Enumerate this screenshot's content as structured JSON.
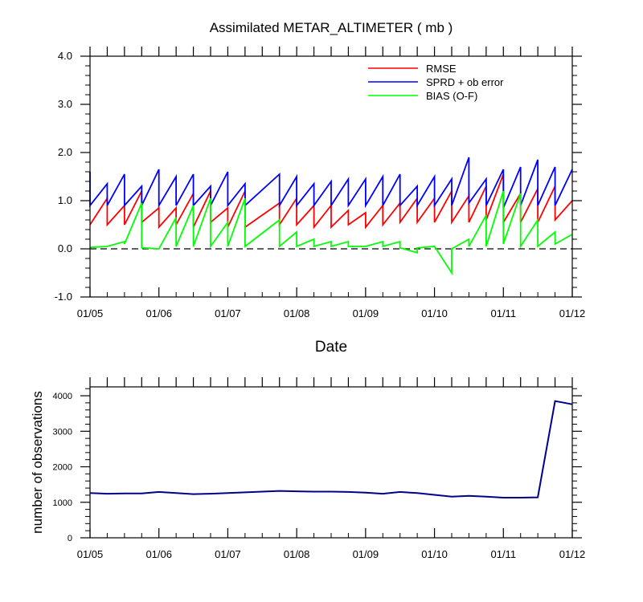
{
  "chart_data": [
    {
      "type": "line",
      "title": "Assimilated METAR_ALTIMETER ( mb )",
      "xlabel": "Date",
      "ylabel": "",
      "xlim": [
        0,
        7
      ],
      "ylim": [
        -1.0,
        4.0
      ],
      "x_tick_labels": [
        "01/05",
        "01/06",
        "01/07",
        "01/08",
        "01/09",
        "01/10",
        "01/11",
        "01/12"
      ],
      "y_tick_labels": [
        "-1.0",
        "0.0",
        "1.0",
        "2.0",
        "3.0",
        "4.0"
      ],
      "y_ticks": [
        -1.0,
        0.0,
        1.0,
        2.0,
        3.0,
        4.0
      ],
      "legend_position": "top-right",
      "zero_line": true,
      "series": [
        {
          "name": "RMSE",
          "color": "#ff0000",
          "points": [
            [
              0,
              0.5
            ],
            [
              0.25,
              1.05
            ],
            [
              0.25,
              0.5
            ],
            [
              0.5,
              0.9
            ],
            [
              0.5,
              0.5
            ],
            [
              0.75,
              1.2
            ],
            [
              0.75,
              0.55
            ],
            [
              1.0,
              0.85
            ],
            [
              1.0,
              0.45
            ],
            [
              1.25,
              0.85
            ],
            [
              1.25,
              0.5
            ],
            [
              1.5,
              1.15
            ],
            [
              1.5,
              0.45
            ],
            [
              1.75,
              1.2
            ],
            [
              1.75,
              0.55
            ],
            [
              2.0,
              0.85
            ],
            [
              2.0,
              0.45
            ],
            [
              2.25,
              1.2
            ],
            [
              2.25,
              0.45
            ],
            [
              2.75,
              0.95
            ],
            [
              2.75,
              0.5
            ],
            [
              3.0,
              1.05
            ],
            [
              3.0,
              0.5
            ],
            [
              3.25,
              0.9
            ],
            [
              3.25,
              0.45
            ],
            [
              3.5,
              0.9
            ],
            [
              3.5,
              0.45
            ],
            [
              3.75,
              0.8
            ],
            [
              3.75,
              0.5
            ],
            [
              4.0,
              0.75
            ],
            [
              4.0,
              0.45
            ],
            [
              4.25,
              0.9
            ],
            [
              4.25,
              0.5
            ],
            [
              4.5,
              0.95
            ],
            [
              4.5,
              0.55
            ],
            [
              4.75,
              1.05
            ],
            [
              4.75,
              0.55
            ],
            [
              5.0,
              1.05
            ],
            [
              5.0,
              0.55
            ],
            [
              5.25,
              1.2
            ],
            [
              5.25,
              0.55
            ],
            [
              5.5,
              1.1
            ],
            [
              5.5,
              0.55
            ],
            [
              5.75,
              1.3
            ],
            [
              5.75,
              0.6
            ],
            [
              6.0,
              1.55
            ],
            [
              6.0,
              0.55
            ],
            [
              6.25,
              1.15
            ],
            [
              6.25,
              0.55
            ],
            [
              6.5,
              1.25
            ],
            [
              6.5,
              0.55
            ],
            [
              6.75,
              1.3
            ],
            [
              6.75,
              0.6
            ],
            [
              7.0,
              1.0
            ]
          ]
        },
        {
          "name": "SPRD + ob error",
          "color": "#0000ff",
          "points": [
            [
              0,
              1.6
            ],
            [
              0,
              0.9
            ],
            [
              0.25,
              1.35
            ],
            [
              0.25,
              0.9
            ],
            [
              0.5,
              1.55
            ],
            [
              0.5,
              0.9
            ],
            [
              0.75,
              1.3
            ],
            [
              0.75,
              0.9
            ],
            [
              1.0,
              1.65
            ],
            [
              1.0,
              0.9
            ],
            [
              1.25,
              1.5
            ],
            [
              1.25,
              0.9
            ],
            [
              1.5,
              1.55
            ],
            [
              1.5,
              0.9
            ],
            [
              1.75,
              1.3
            ],
            [
              1.75,
              0.9
            ],
            [
              2.0,
              1.6
            ],
            [
              2.0,
              0.9
            ],
            [
              2.25,
              1.35
            ],
            [
              2.25,
              0.9
            ],
            [
              2.75,
              1.55
            ],
            [
              2.75,
              0.9
            ],
            [
              3.0,
              1.5
            ],
            [
              3.0,
              0.9
            ],
            [
              3.25,
              1.35
            ],
            [
              3.25,
              0.9
            ],
            [
              3.5,
              1.4
            ],
            [
              3.5,
              0.9
            ],
            [
              3.75,
              1.45
            ],
            [
              3.75,
              0.9
            ],
            [
              4.0,
              1.45
            ],
            [
              4.0,
              0.9
            ],
            [
              4.25,
              1.5
            ],
            [
              4.25,
              0.9
            ],
            [
              4.5,
              1.55
            ],
            [
              4.5,
              0.9
            ],
            [
              4.75,
              1.3
            ],
            [
              4.75,
              0.9
            ],
            [
              5.0,
              1.5
            ],
            [
              5.0,
              0.9
            ],
            [
              5.25,
              1.45
            ],
            [
              5.25,
              0.9
            ],
            [
              5.5,
              1.9
            ],
            [
              5.5,
              0.95
            ],
            [
              5.75,
              1.45
            ],
            [
              5.75,
              0.9
            ],
            [
              6.0,
              1.65
            ],
            [
              6.0,
              0.85
            ],
            [
              6.25,
              1.7
            ],
            [
              6.25,
              0.9
            ],
            [
              6.5,
              1.85
            ],
            [
              6.5,
              0.9
            ],
            [
              6.75,
              1.7
            ],
            [
              6.75,
              0.9
            ],
            [
              7.0,
              1.65
            ]
          ]
        },
        {
          "name": "BIAS (O-F)",
          "color": "#00ff00",
          "points": [
            [
              0,
              0.03
            ],
            [
              0.25,
              0.05
            ],
            [
              0.5,
              0.15
            ],
            [
              0.5,
              0.1
            ],
            [
              0.75,
              0.95
            ],
            [
              0.75,
              0.02
            ],
            [
              1.0,
              0.0
            ],
            [
              1.25,
              0.65
            ],
            [
              1.25,
              0.05
            ],
            [
              1.5,
              0.9
            ],
            [
              1.5,
              0.05
            ],
            [
              1.75,
              1.05
            ],
            [
              1.75,
              0.05
            ],
            [
              2.0,
              0.55
            ],
            [
              2.0,
              0.05
            ],
            [
              2.25,
              1.05
            ],
            [
              2.25,
              0.05
            ],
            [
              2.75,
              0.6
            ],
            [
              2.75,
              0.05
            ],
            [
              3.0,
              0.35
            ],
            [
              3.0,
              0.05
            ],
            [
              3.25,
              0.2
            ],
            [
              3.25,
              0.05
            ],
            [
              3.5,
              0.15
            ],
            [
              3.5,
              0.05
            ],
            [
              3.75,
              0.15
            ],
            [
              3.75,
              0.05
            ],
            [
              4.0,
              0.05
            ],
            [
              4.25,
              0.15
            ],
            [
              4.25,
              0.05
            ],
            [
              4.5,
              0.15
            ],
            [
              4.5,
              0.02
            ],
            [
              4.75,
              -0.08
            ],
            [
              4.75,
              0.02
            ],
            [
              5.0,
              0.05
            ],
            [
              5.25,
              -0.5
            ],
            [
              5.25,
              0.0
            ],
            [
              5.5,
              0.2
            ],
            [
              5.5,
              0.05
            ],
            [
              5.75,
              0.7
            ],
            [
              5.75,
              0.05
            ],
            [
              6.0,
              1.2
            ],
            [
              6.0,
              0.1
            ],
            [
              6.25,
              1.15
            ],
            [
              6.25,
              0.05
            ],
            [
              6.5,
              0.6
            ],
            [
              6.5,
              0.05
            ],
            [
              6.75,
              0.35
            ],
            [
              6.75,
              0.1
            ],
            [
              7.0,
              0.3
            ]
          ]
        }
      ]
    },
    {
      "type": "line",
      "title": "",
      "xlabel": "",
      "ylabel": "number of observations",
      "xlim": [
        0,
        7
      ],
      "ylim": [
        0,
        4250
      ],
      "x_tick_labels": [
        "01/05",
        "01/06",
        "01/07",
        "01/08",
        "01/09",
        "01/10",
        "01/11",
        "01/12"
      ],
      "y_tick_labels": [
        "0",
        "1000",
        "2000",
        "3000",
        "4000"
      ],
      "y_ticks": [
        0,
        1000,
        2000,
        3000,
        4000
      ],
      "series": [
        {
          "color": "#00008b",
          "points": [
            [
              0,
              1260
            ],
            [
              0.25,
              1240
            ],
            [
              0.5,
              1250
            ],
            [
              0.75,
              1250
            ],
            [
              1.0,
              1290
            ],
            [
              1.25,
              1260
            ],
            [
              1.5,
              1230
            ],
            [
              1.75,
              1240
            ],
            [
              2.0,
              1260
            ],
            [
              2.25,
              1280
            ],
            [
              2.75,
              1320
            ],
            [
              3.0,
              1310
            ],
            [
              3.25,
              1300
            ],
            [
              3.5,
              1300
            ],
            [
              3.75,
              1290
            ],
            [
              4.0,
              1270
            ],
            [
              4.25,
              1240
            ],
            [
              4.5,
              1290
            ],
            [
              4.75,
              1260
            ],
            [
              5.0,
              1210
            ],
            [
              5.25,
              1160
            ],
            [
              5.5,
              1180
            ],
            [
              5.75,
              1160
            ],
            [
              6.0,
              1130
            ],
            [
              6.25,
              1130
            ],
            [
              6.5,
              1140
            ],
            [
              6.75,
              3850
            ],
            [
              7.0,
              3760
            ]
          ]
        }
      ]
    }
  ]
}
